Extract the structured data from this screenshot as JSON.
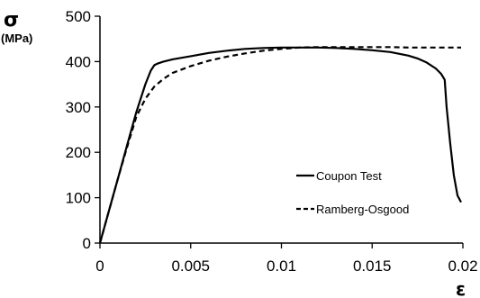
{
  "chart_data": {
    "type": "line",
    "ylabel": "σ",
    "ylabel_unit": "(MPa)",
    "xlabel": "ε",
    "xlim": [
      0,
      0.02
    ],
    "ylim": [
      0,
      500
    ],
    "xticks": [
      "0",
      "0.005",
      "0.01",
      "0.015",
      "0.02"
    ],
    "yticks": [
      "0",
      "100",
      "200",
      "300",
      "400",
      "500"
    ],
    "x_tick_values": [
      0,
      0.005,
      0.01,
      0.015,
      0.02
    ],
    "y_tick_values": [
      0,
      100,
      200,
      300,
      400,
      500
    ],
    "grid": "none",
    "legend_position": "lower-right",
    "series": [
      {
        "name": "Coupon Test",
        "style": "solid",
        "color": "#000000",
        "x": [
          0,
          0.0005,
          0.001,
          0.0015,
          0.002,
          0.0025,
          0.0028,
          0.003,
          0.0032,
          0.0035,
          0.004,
          0.005,
          0.006,
          0.007,
          0.008,
          0.009,
          0.01,
          0.011,
          0.012,
          0.013,
          0.014,
          0.015,
          0.016,
          0.017,
          0.0175,
          0.018,
          0.0185,
          0.0188,
          0.019,
          0.0191,
          0.0193,
          0.0195,
          0.0197,
          0.0199
        ],
        "y": [
          0,
          72,
          144,
          216,
          288,
          350,
          380,
          392,
          396,
          400,
          405,
          412,
          419,
          424,
          428,
          430,
          431,
          431,
          431,
          430,
          428,
          425,
          421,
          413,
          407,
          398,
          385,
          373,
          360,
          300,
          220,
          150,
          105,
          90
        ]
      },
      {
        "name": "Ramberg-Osgood",
        "style": "dashed",
        "color": "#000000",
        "x": [
          0,
          0.0005,
          0.001,
          0.0015,
          0.002,
          0.0025,
          0.003,
          0.0035,
          0.004,
          0.005,
          0.006,
          0.007,
          0.008,
          0.009,
          0.01,
          0.011,
          0.012,
          0.013,
          0.014,
          0.015,
          0.016,
          0.017,
          0.018,
          0.019,
          0.0199
        ],
        "y": [
          0,
          72,
          144,
          212,
          278,
          318,
          345,
          362,
          375,
          390,
          402,
          411,
          418,
          424,
          428,
          431,
          432,
          432,
          432,
          432,
          432,
          431,
          431,
          431,
          431
        ]
      }
    ]
  }
}
